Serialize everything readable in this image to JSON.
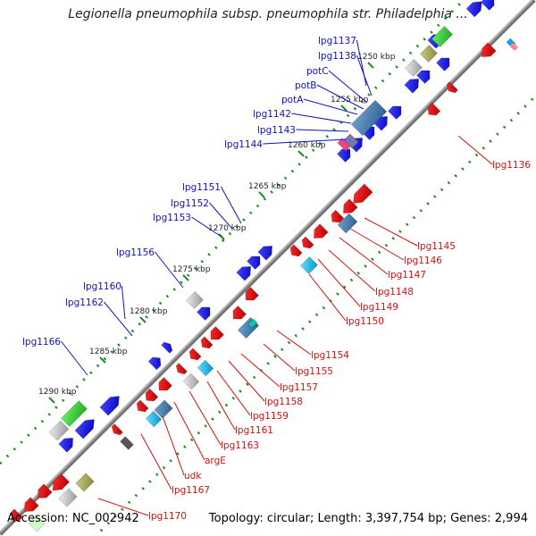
{
  "title": "Legionella pneumophila subsp. pneumophila str. Philadelphia ...",
  "accession_text": "Accession: NC_002942",
  "summary_text": "Topology: circular; Length: 3,397,754 bp; Genes: 2,994",
  "colors": {
    "backbone": "#777777",
    "forward_gene": "#0000ee",
    "reverse_gene": "#ee0000",
    "forward_label": "#000099",
    "reverse_label": "#cc0000",
    "tick": "#228822"
  },
  "ticks": [
    {
      "label": "1250 kbp"
    },
    {
      "label": "1255 kbp"
    },
    {
      "label": "1260 kbp"
    },
    {
      "label": "1265 kbp"
    },
    {
      "label": "1270 kbp"
    },
    {
      "label": "1275 kbp"
    },
    {
      "label": "1280 kbp"
    },
    {
      "label": "1285 kbp"
    },
    {
      "label": "1290 kbp"
    }
  ],
  "forward_labels": [
    "lpg1137",
    "lpg1138",
    "potC",
    "potB",
    "potA",
    "lpg1142",
    "lpg1143",
    "lpg1144",
    "lpg1151",
    "lpg1152",
    "lpg1153",
    "lpg1156",
    "lpg1160",
    "lpg1162",
    "lpg1166"
  ],
  "reverse_labels": [
    "lpg1136",
    "lpg1145",
    "lpg1146",
    "lpg1147",
    "lpg1148",
    "lpg1149",
    "lpg1150",
    "lpg1154",
    "lpg1155",
    "lpg1157",
    "lpg1158",
    "lpg1159",
    "lpg1161",
    "lpg1163",
    "argE",
    "udk",
    "lpg1167",
    "lpg1170"
  ]
}
